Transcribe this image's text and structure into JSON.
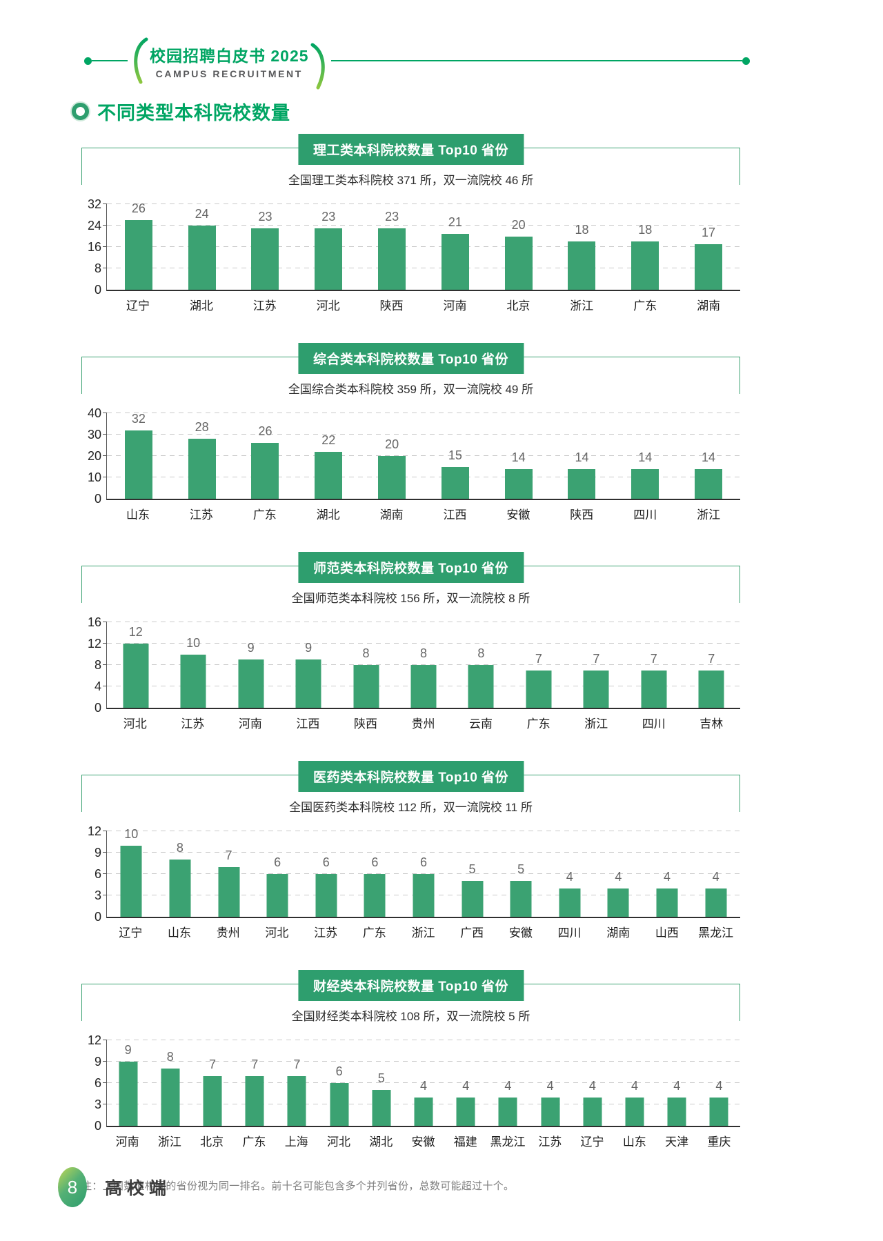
{
  "header": {
    "logo_title": "校园招聘白皮书 2025",
    "logo_subtitle": "CAMPUS RECRUITMENT"
  },
  "section_title": "不同类型本科院校数量",
  "chart_data": [
    {
      "id": "science-engineering",
      "type": "bar",
      "title": "理工类本科院校数量 Top10 省份",
      "subtitle": "全国理工类本科院校 371 所，双一流院校 46 所",
      "categories": [
        "辽宁",
        "湖北",
        "江苏",
        "河北",
        "陕西",
        "河南",
        "北京",
        "浙江",
        "广东",
        "湖南"
      ],
      "values": [
        26,
        24,
        23,
        23,
        23,
        21,
        20,
        18,
        18,
        17
      ],
      "yticks": [
        0,
        8,
        16,
        24,
        32
      ],
      "ylim": [
        0,
        32
      ],
      "grid": "dashed-horizontal",
      "legend": "none"
    },
    {
      "id": "comprehensive",
      "type": "bar",
      "title": "综合类本科院校数量 Top10 省份",
      "subtitle": "全国综合类本科院校 359 所，双一流院校 49 所",
      "categories": [
        "山东",
        "江苏",
        "广东",
        "湖北",
        "湖南",
        "江西",
        "安徽",
        "陕西",
        "四川",
        "浙江"
      ],
      "values": [
        32,
        28,
        26,
        22,
        20,
        15,
        14,
        14,
        14,
        14
      ],
      "yticks": [
        0,
        10,
        20,
        30,
        40
      ],
      "ylim": [
        0,
        40
      ],
      "grid": "dashed-horizontal",
      "legend": "none"
    },
    {
      "id": "normal-education",
      "type": "bar",
      "title": "师范类本科院校数量 Top10 省份",
      "subtitle": "全国师范类本科院校 156 所，双一流院校 8 所",
      "categories": [
        "河北",
        "江苏",
        "河南",
        "江西",
        "陕西",
        "贵州",
        "云南",
        "广东",
        "浙江",
        "四川",
        "吉林"
      ],
      "values": [
        12,
        10,
        9,
        9,
        8,
        8,
        8,
        7,
        7,
        7,
        7
      ],
      "yticks": [
        0,
        4,
        8,
        12,
        16
      ],
      "ylim": [
        0,
        16
      ],
      "grid": "dashed-horizontal",
      "legend": "none"
    },
    {
      "id": "medical",
      "type": "bar",
      "title": "医药类本科院校数量 Top10 省份",
      "subtitle": "全国医药类本科院校 112 所，双一流院校 11 所",
      "categories": [
        "辽宁",
        "山东",
        "贵州",
        "河北",
        "江苏",
        "广东",
        "浙江",
        "广西",
        "安徽",
        "四川",
        "湖南",
        "山西",
        "黑龙江"
      ],
      "values": [
        10,
        8,
        7,
        6,
        6,
        6,
        6,
        5,
        5,
        4,
        4,
        4,
        4
      ],
      "yticks": [
        0,
        3,
        6,
        9,
        12
      ],
      "ylim": [
        0,
        12
      ],
      "grid": "dashed-horizontal",
      "legend": "none"
    },
    {
      "id": "finance-economics",
      "type": "bar",
      "title": "财经类本科院校数量 Top10 省份",
      "subtitle": "全国财经类本科院校 108 所，双一流院校 5 所",
      "categories": [
        "河南",
        "浙江",
        "北京",
        "广东",
        "上海",
        "河北",
        "湖北",
        "安徽",
        "福建",
        "黑龙江",
        "江苏",
        "辽宁",
        "山东",
        "天津",
        "重庆"
      ],
      "values": [
        9,
        8,
        7,
        7,
        7,
        6,
        5,
        4,
        4,
        4,
        4,
        4,
        4,
        4,
        4
      ],
      "yticks": [
        0,
        3,
        6,
        9,
        12
      ],
      "ylim": [
        0,
        12
      ],
      "grid": "dashed-horizontal",
      "legend": "none"
    }
  ],
  "note": "注：上图数值相同的省份视为同一排名。前十名可能包含多个并列省份，总数可能超过十个。",
  "footer": {
    "page_number": "8",
    "side_label": "高校端"
  },
  "colors": {
    "bar": "#3BA272",
    "title_box_bg": "#2E9E6E",
    "accent_green": "#00A563",
    "frame_line": "#3BA272",
    "gridline": "#C9C9C9",
    "value_label": "#666666",
    "logo_subtitle_gray": "#58595B"
  }
}
